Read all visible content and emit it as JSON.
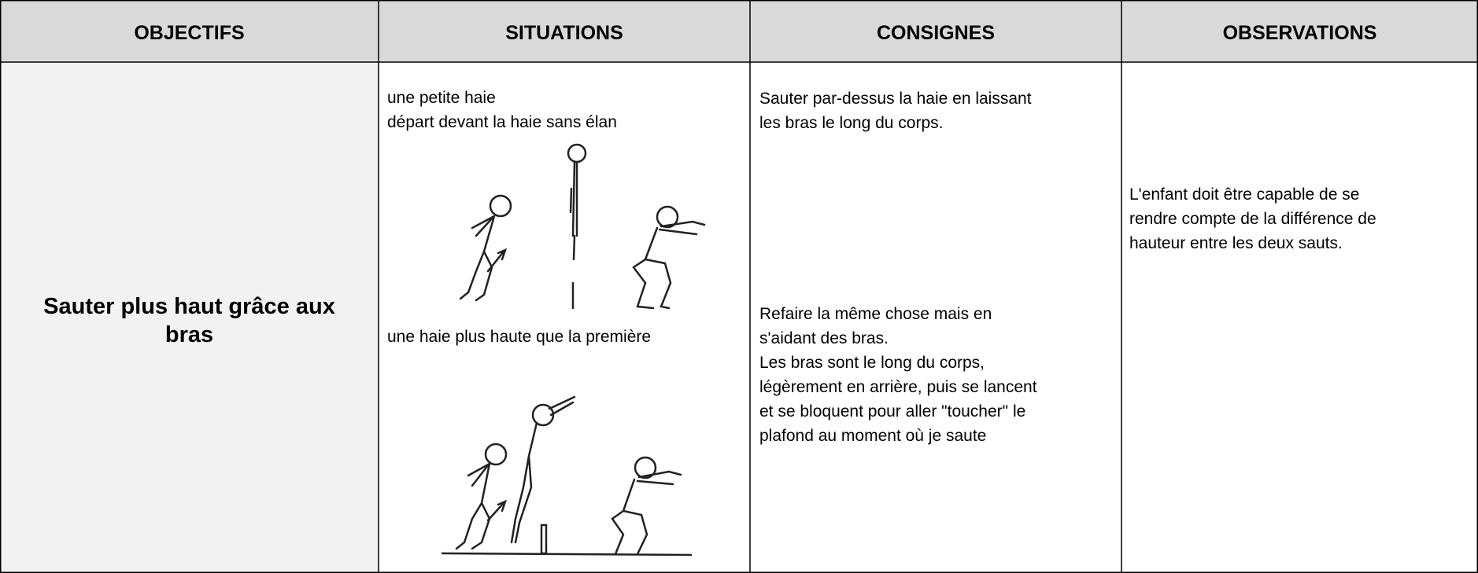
{
  "table": {
    "header": [
      "OBJECTIFS",
      "SITUATIONS",
      "CONSIGNES",
      "OBSERVATIONS"
    ],
    "objectif": [
      "Sauter plus haut grâce aux",
      "bras"
    ],
    "situations": [
      "une petite haie",
      "départ devant la haie sans élan",
      "une haie plus haute que la première"
    ],
    "consignes": [
      [
        "Sauter par-dessus la haie en laissant",
        "les bras le long du corps."
      ],
      [
        "Refaire la même chose mais en",
        "s'aidant des bras.",
        "Les bras sont le long du corps,",
        "légèrement en arrière, puis se lancent",
        "et se bloquent pour aller \"toucher\" le",
        "plafond au moment où je saute"
      ]
    ],
    "observations": [
      "L'enfant doit être capable de se",
      "rendre compte de la différence de",
      "hauteur entre les deux sauts."
    ]
  }
}
